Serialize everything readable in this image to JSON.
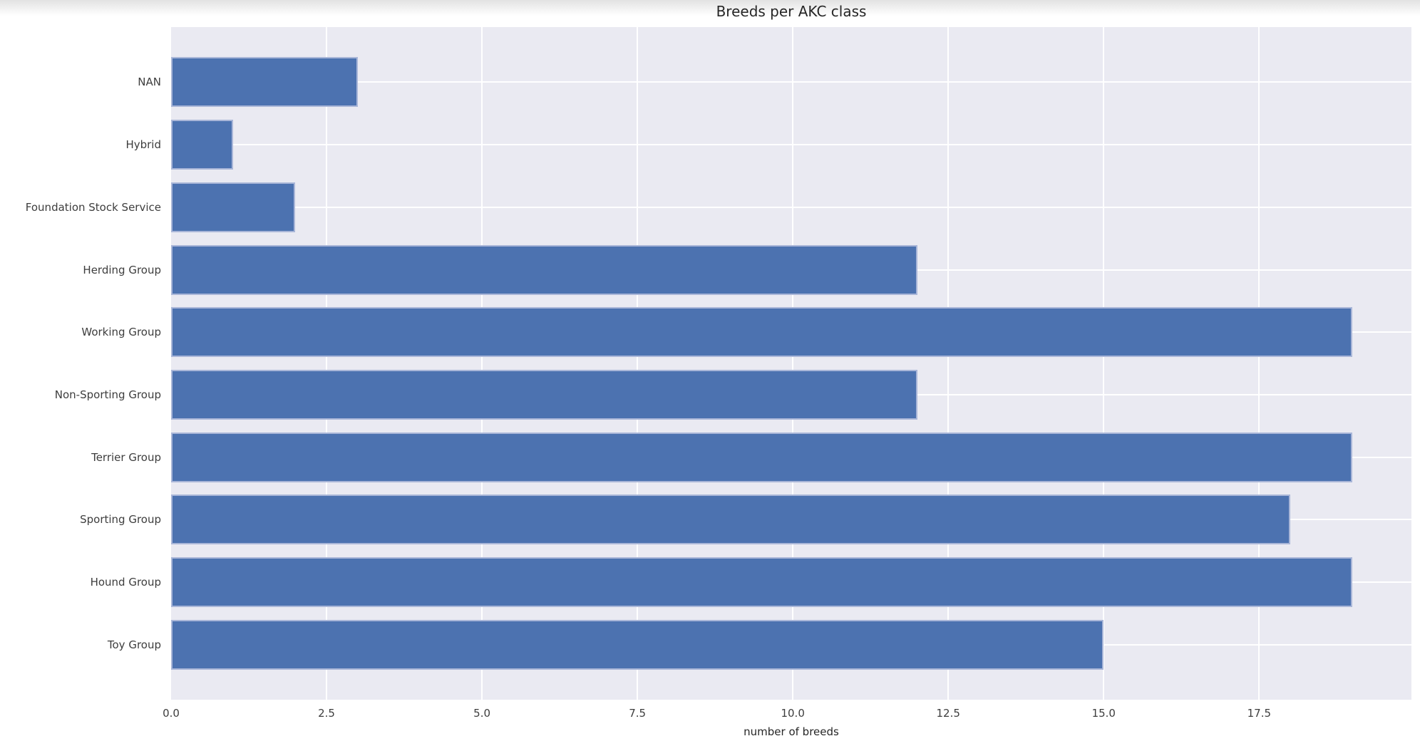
{
  "chart_data": {
    "type": "bar",
    "orientation": "horizontal",
    "title": "Breeds per AKC class",
    "xlabel": "number of breeds",
    "ylabel": "",
    "categories": [
      "NAN",
      "Hybrid",
      "Foundation Stock Service",
      "Herding Group",
      "Working Group",
      "Non-Sporting Group",
      "Terrier Group",
      "Sporting Group",
      "Hound Group",
      "Toy Group"
    ],
    "values": [
      3,
      1,
      2,
      12,
      19,
      12,
      19,
      18,
      19,
      15
    ],
    "xticks": [
      0.0,
      2.5,
      5.0,
      7.5,
      10.0,
      12.5,
      15.0,
      17.5
    ],
    "xtick_labels": [
      "0.0",
      "2.5",
      "5.0",
      "7.5",
      "10.0",
      "12.5",
      "15.0",
      "17.5"
    ],
    "xlim": [
      0,
      19.95
    ],
    "grid": true,
    "legend": false,
    "style": {
      "bar_color": "#4c72b0",
      "bar_edge_color": "#a9b6d8",
      "plot_background": "#eaeaf2",
      "grid_color": "#ffffff",
      "text_color": "#262626",
      "page_background": "#ffffff"
    }
  }
}
